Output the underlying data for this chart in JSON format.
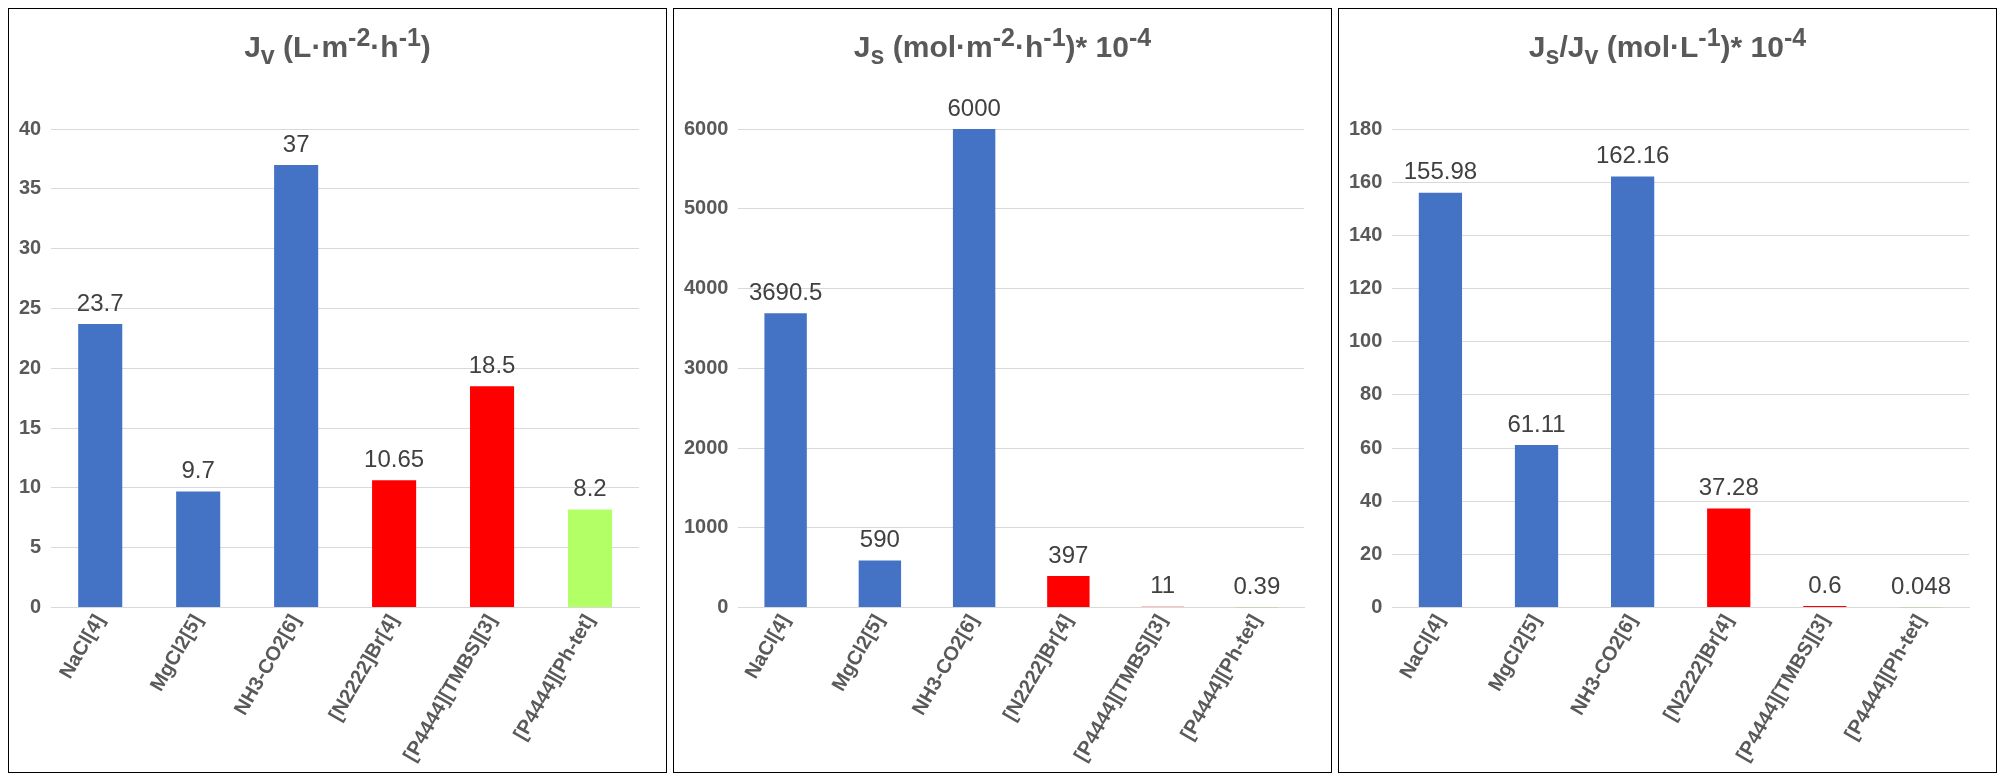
{
  "chart_data": [
    {
      "type": "bar",
      "title": "J$_{v}$ (L·m$^{-2}$·h$^{-1}$)",
      "categories": [
        "NaCl[4]",
        "MgCl2[5]",
        "NH3-CO2[6]",
        "[N2222]Br[4]",
        "[P4444][TMBS][3]",
        "[P4444][Ph-tet]"
      ],
      "values": [
        23.7,
        9.7,
        37,
        10.65,
        18.5,
        8.2
      ],
      "colors": [
        "#4472c4",
        "#4472c4",
        "#4472c4",
        "#ff0000",
        "#ff0000",
        "#b3ff66"
      ],
      "ylim": [
        0,
        40
      ],
      "yticks": [
        0,
        5,
        10,
        15,
        20,
        25,
        30,
        35,
        40
      ],
      "grid": "y",
      "data_labels": true
    },
    {
      "type": "bar",
      "title": "J$_{s}$ (mol·m$^{-2}$·h$^{-1}$)* 10$^{-4}$",
      "categories": [
        "NaCl[4]",
        "MgCl2[5]",
        "NH3-CO2[6]",
        "[N2222]Br[4]",
        "[P4444][TMBS][3]",
        "[P4444][Ph-tet]"
      ],
      "values": [
        3690.5,
        590,
        6000,
        397,
        11,
        0.39
      ],
      "colors": [
        "#4472c4",
        "#4472c4",
        "#4472c4",
        "#ff0000",
        "#ff0000",
        "#92d050"
      ],
      "ylim": [
        0,
        6000
      ],
      "yticks": [
        0,
        1000,
        2000,
        3000,
        4000,
        5000,
        6000
      ],
      "grid": "y",
      "data_labels": true
    },
    {
      "type": "bar",
      "title": "J$_{s}$/J$_{v}$ (mol·L$^{-1}$)* 10$^{-4}$",
      "categories": [
        "NaCl[4]",
        "MgCl2[5]",
        "NH3-CO2[6]",
        "[N2222]Br[4]",
        "[P4444][TMBS][3]",
        "[P4444][Ph-tet]"
      ],
      "values": [
        155.98,
        61.11,
        162.16,
        37.28,
        0.6,
        0.048
      ],
      "colors": [
        "#4472c4",
        "#4472c4",
        "#4472c4",
        "#ff0000",
        "#ff0000",
        "#92d050"
      ],
      "ylim": [
        0,
        180
      ],
      "yticks": [
        0,
        20,
        40,
        60,
        80,
        100,
        120,
        140,
        160,
        180
      ],
      "grid": "y",
      "data_labels": true
    }
  ]
}
